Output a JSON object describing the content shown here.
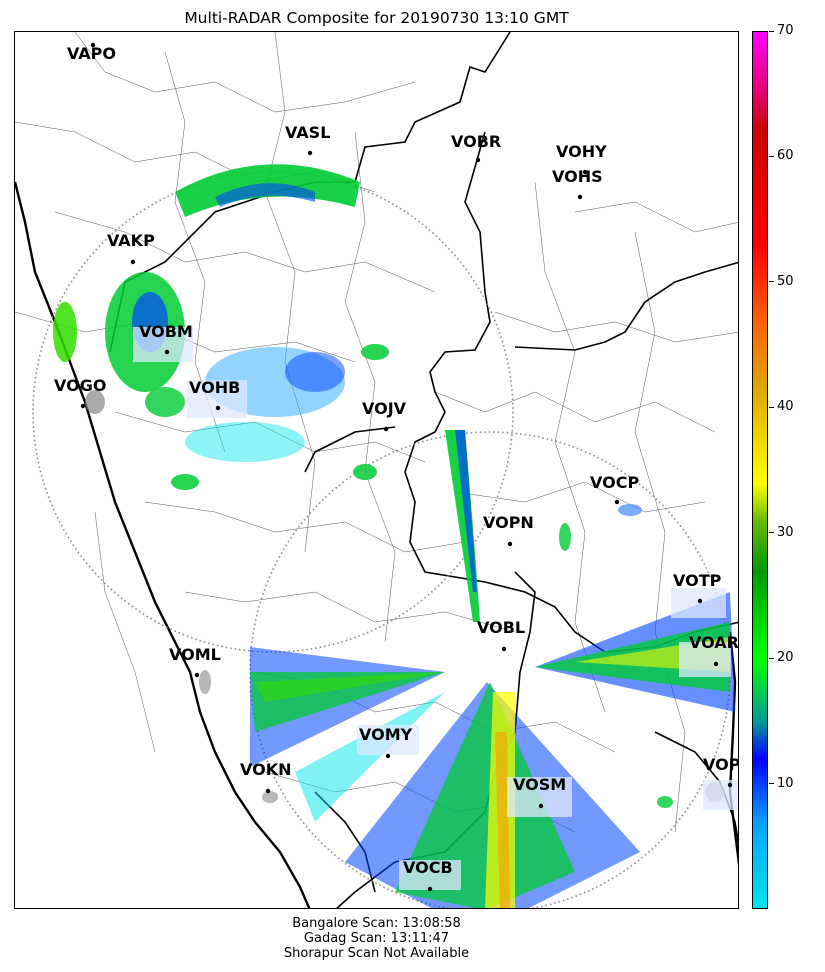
{
  "title": "Multi-RADAR Composite for 20190730 13:10 GMT",
  "colorbar": {
    "min": 0,
    "max": 70,
    "ticks": [
      "10",
      "20",
      "30",
      "40",
      "50",
      "60",
      "70"
    ],
    "stops": [
      {
        "v": 0,
        "c": "#00e5ee"
      },
      {
        "v": 7,
        "c": "#0ba0ff"
      },
      {
        "v": 12,
        "c": "#0000ff"
      },
      {
        "v": 15,
        "c": "#009999"
      },
      {
        "v": 20,
        "c": "#00ff00"
      },
      {
        "v": 27,
        "c": "#009900"
      },
      {
        "v": 31,
        "c": "#66bb00"
      },
      {
        "v": 34,
        "c": "#ffff00"
      },
      {
        "v": 42,
        "c": "#e0a000"
      },
      {
        "v": 47,
        "c": "#ff6000"
      },
      {
        "v": 53,
        "c": "#ff0000"
      },
      {
        "v": 62,
        "c": "#cc0000"
      },
      {
        "v": 65,
        "c": "#e0006a"
      },
      {
        "v": 70,
        "c": "#ff00ff"
      }
    ]
  },
  "stations": [
    {
      "id": "VAPO"
    },
    {
      "id": "VASL"
    },
    {
      "id": "VOBR"
    },
    {
      "id": "VOHY"
    },
    {
      "id": "VOHS"
    },
    {
      "id": "VAKP"
    },
    {
      "id": "VOBM"
    },
    {
      "id": "VOGO"
    },
    {
      "id": "VOHB"
    },
    {
      "id": "VOJV"
    },
    {
      "id": "VOCP"
    },
    {
      "id": "VOPN"
    },
    {
      "id": "VOTP"
    },
    {
      "id": "VOBL"
    },
    {
      "id": "VOAR"
    },
    {
      "id": "VOML"
    },
    {
      "id": "VOMY"
    },
    {
      "id": "VOKN"
    },
    {
      "id": "VOPC"
    },
    {
      "id": "VOSM"
    },
    {
      "id": "VOCB"
    }
  ],
  "footer": {
    "line1": "Bangalore Scan: 13:08:58",
    "line2": "Gadag Scan: 13:11:47",
    "line3": "Shorapur Scan Not Available"
  }
}
